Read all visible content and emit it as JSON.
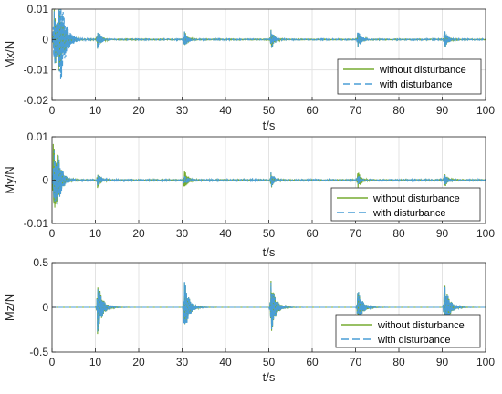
{
  "chart_data": [
    {
      "type": "line",
      "xlabel": "t/s",
      "ylabel": "Mx/N",
      "xlim": [
        0,
        100
      ],
      "ylim": [
        -0.02,
        0.01
      ],
      "x_ticks": [
        0,
        10,
        20,
        30,
        40,
        50,
        60,
        70,
        80,
        90,
        100
      ],
      "y_ticks": [
        -0.02,
        -0.01,
        0,
        0.01
      ],
      "y_tick_labels": [
        "-0.02",
        "-0.01",
        "0",
        "0.01"
      ],
      "grid": true,
      "legend_position": "bottom-right",
      "amp_scale": 0.01,
      "series": [
        {
          "name": "without disturbance",
          "color": "#77ac30",
          "style": "solid",
          "bursts": [
            {
              "t": 0.5,
              "amp": 1.0,
              "decay": 1.3
            },
            {
              "t": 1.5,
              "amp": 1.0,
              "decay": 1.2
            },
            {
              "t": 10.5,
              "amp": 0.32,
              "decay": 0.8
            },
            {
              "t": 30.5,
              "amp": 0.3,
              "decay": 0.8
            },
            {
              "t": 50.5,
              "amp": 0.35,
              "decay": 0.8
            },
            {
              "t": 70.5,
              "amp": 0.28,
              "decay": 0.8
            },
            {
              "t": 90.5,
              "amp": 0.32,
              "decay": 0.8
            }
          ],
          "noise": 0.06
        },
        {
          "name": "with disturbance",
          "color": "#4a9ed6",
          "style": "dashed",
          "bursts": [
            {
              "t": 0.4,
              "amp": 1.05,
              "decay": 1.3
            },
            {
              "t": 1.6,
              "amp": 1.85,
              "decay": 1.2
            },
            {
              "t": 10.5,
              "amp": 0.35,
              "decay": 0.8
            },
            {
              "t": 30.5,
              "amp": 0.3,
              "decay": 0.8
            },
            {
              "t": 50.5,
              "amp": 0.35,
              "decay": 0.8
            },
            {
              "t": 70.5,
              "amp": 0.32,
              "decay": 0.8
            },
            {
              "t": 90.5,
              "amp": 0.35,
              "decay": 0.8
            }
          ],
          "noise": 0.08
        }
      ]
    },
    {
      "type": "line",
      "xlabel": "t/s",
      "ylabel": "My/N",
      "xlim": [
        0,
        100
      ],
      "ylim": [
        -0.01,
        0.01
      ],
      "x_ticks": [
        0,
        10,
        20,
        30,
        40,
        50,
        60,
        70,
        80,
        90,
        100
      ],
      "y_ticks": [
        -0.01,
        0,
        0.01
      ],
      "y_tick_labels": [
        "-0.01",
        "0",
        "0.01"
      ],
      "grid": true,
      "legend_position": "bottom-right",
      "amp_scale": 0.01,
      "series": [
        {
          "name": "without disturbance",
          "color": "#77ac30",
          "style": "solid",
          "bursts": [
            {
              "t": 0.3,
              "amp": 0.95,
              "decay": 1.0
            },
            {
              "t": 1.2,
              "amp": 0.4,
              "decay": 1.0
            },
            {
              "t": 10.5,
              "amp": 0.2,
              "decay": 0.8
            },
            {
              "t": 30.5,
              "amp": 0.25,
              "decay": 0.8
            },
            {
              "t": 50.5,
              "amp": 0.2,
              "decay": 0.8
            },
            {
              "t": 70.5,
              "amp": 0.22,
              "decay": 0.8
            },
            {
              "t": 90.5,
              "amp": 0.18,
              "decay": 0.8
            }
          ],
          "noise": 0.05
        },
        {
          "name": "with disturbance",
          "color": "#4a9ed6",
          "style": "dashed",
          "bursts": [
            {
              "t": 0.4,
              "amp": 0.75,
              "decay": 1.0
            },
            {
              "t": 1.3,
              "amp": 0.45,
              "decay": 1.0
            },
            {
              "t": 10.5,
              "amp": 0.15,
              "decay": 0.8
            },
            {
              "t": 30.5,
              "amp": 0.12,
              "decay": 0.8
            },
            {
              "t": 50.5,
              "amp": 0.18,
              "decay": 0.8
            },
            {
              "t": 70.5,
              "amp": 0.12,
              "decay": 0.8
            },
            {
              "t": 90.5,
              "amp": 0.15,
              "decay": 0.8
            }
          ],
          "noise": 0.07
        }
      ]
    },
    {
      "type": "line",
      "xlabel": "t/s",
      "ylabel": "Mz/N",
      "xlim": [
        0,
        100
      ],
      "ylim": [
        -0.5,
        0.5
      ],
      "x_ticks": [
        0,
        10,
        20,
        30,
        40,
        50,
        60,
        70,
        80,
        90,
        100
      ],
      "y_ticks": [
        -0.5,
        0,
        0.5
      ],
      "y_tick_labels": [
        "-0.5",
        "0",
        "0.5"
      ],
      "grid": true,
      "legend_position": "bottom-right",
      "amp_scale": 1,
      "series": [
        {
          "name": "without disturbance",
          "color": "#77ac30",
          "style": "solid",
          "bursts": [
            {
              "t": 10.5,
              "amp": 0.33,
              "decay": 1.0
            },
            {
              "t": 30.5,
              "amp": 0.32,
              "decay": 1.0
            },
            {
              "t": 50.5,
              "amp": 0.32,
              "decay": 1.0
            },
            {
              "t": 70.5,
              "amp": 0.22,
              "decay": 1.0
            },
            {
              "t": 90.5,
              "amp": 0.32,
              "decay": 1.0
            }
          ],
          "noise": 0.0
        },
        {
          "name": "with disturbance",
          "color": "#4a9ed6",
          "style": "dashed",
          "bursts": [
            {
              "t": 10.5,
              "amp": 0.3,
              "decay": 1.0
            },
            {
              "t": 30.5,
              "amp": 0.33,
              "decay": 1.0
            },
            {
              "t": 50.5,
              "amp": 0.3,
              "decay": 1.0
            },
            {
              "t": 70.5,
              "amp": 0.22,
              "decay": 1.0
            },
            {
              "t": 90.5,
              "amp": 0.3,
              "decay": 1.0
            }
          ],
          "noise": 0.0
        }
      ]
    }
  ]
}
